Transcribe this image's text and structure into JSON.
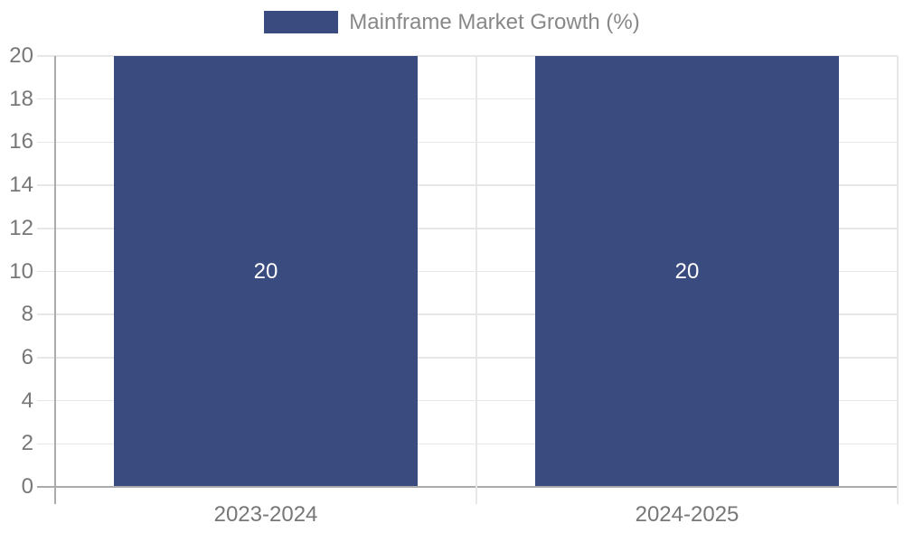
{
  "legend": {
    "label": "Mainframe Market Growth (%)"
  },
  "colors": {
    "bar": "#3A4B80",
    "grid_line": "#E7E7E7",
    "axis_line": "#ABABAB",
    "tick_text": "#777777",
    "legend_text": "#888888",
    "value_label_text": "#FFFFFF",
    "background": "#FFFFFF"
  },
  "chart_data": {
    "type": "bar",
    "title": "Mainframe Market Growth (%)",
    "categories": [
      "2023-2024",
      "2024-2025"
    ],
    "series": [
      {
        "name": "Mainframe Market Growth (%)",
        "color": "#3A4B80",
        "values": [
          20,
          20
        ]
      }
    ],
    "value_labels": [
      "20",
      "20"
    ],
    "xlabel": "",
    "ylabel": "",
    "ylim": [
      0,
      20
    ],
    "ytick_step": 2,
    "yticks": [
      0,
      2,
      4,
      6,
      8,
      10,
      12,
      14,
      16,
      18,
      20
    ],
    "grid": true,
    "legend_position": "top-center",
    "value_label_position": "center"
  }
}
